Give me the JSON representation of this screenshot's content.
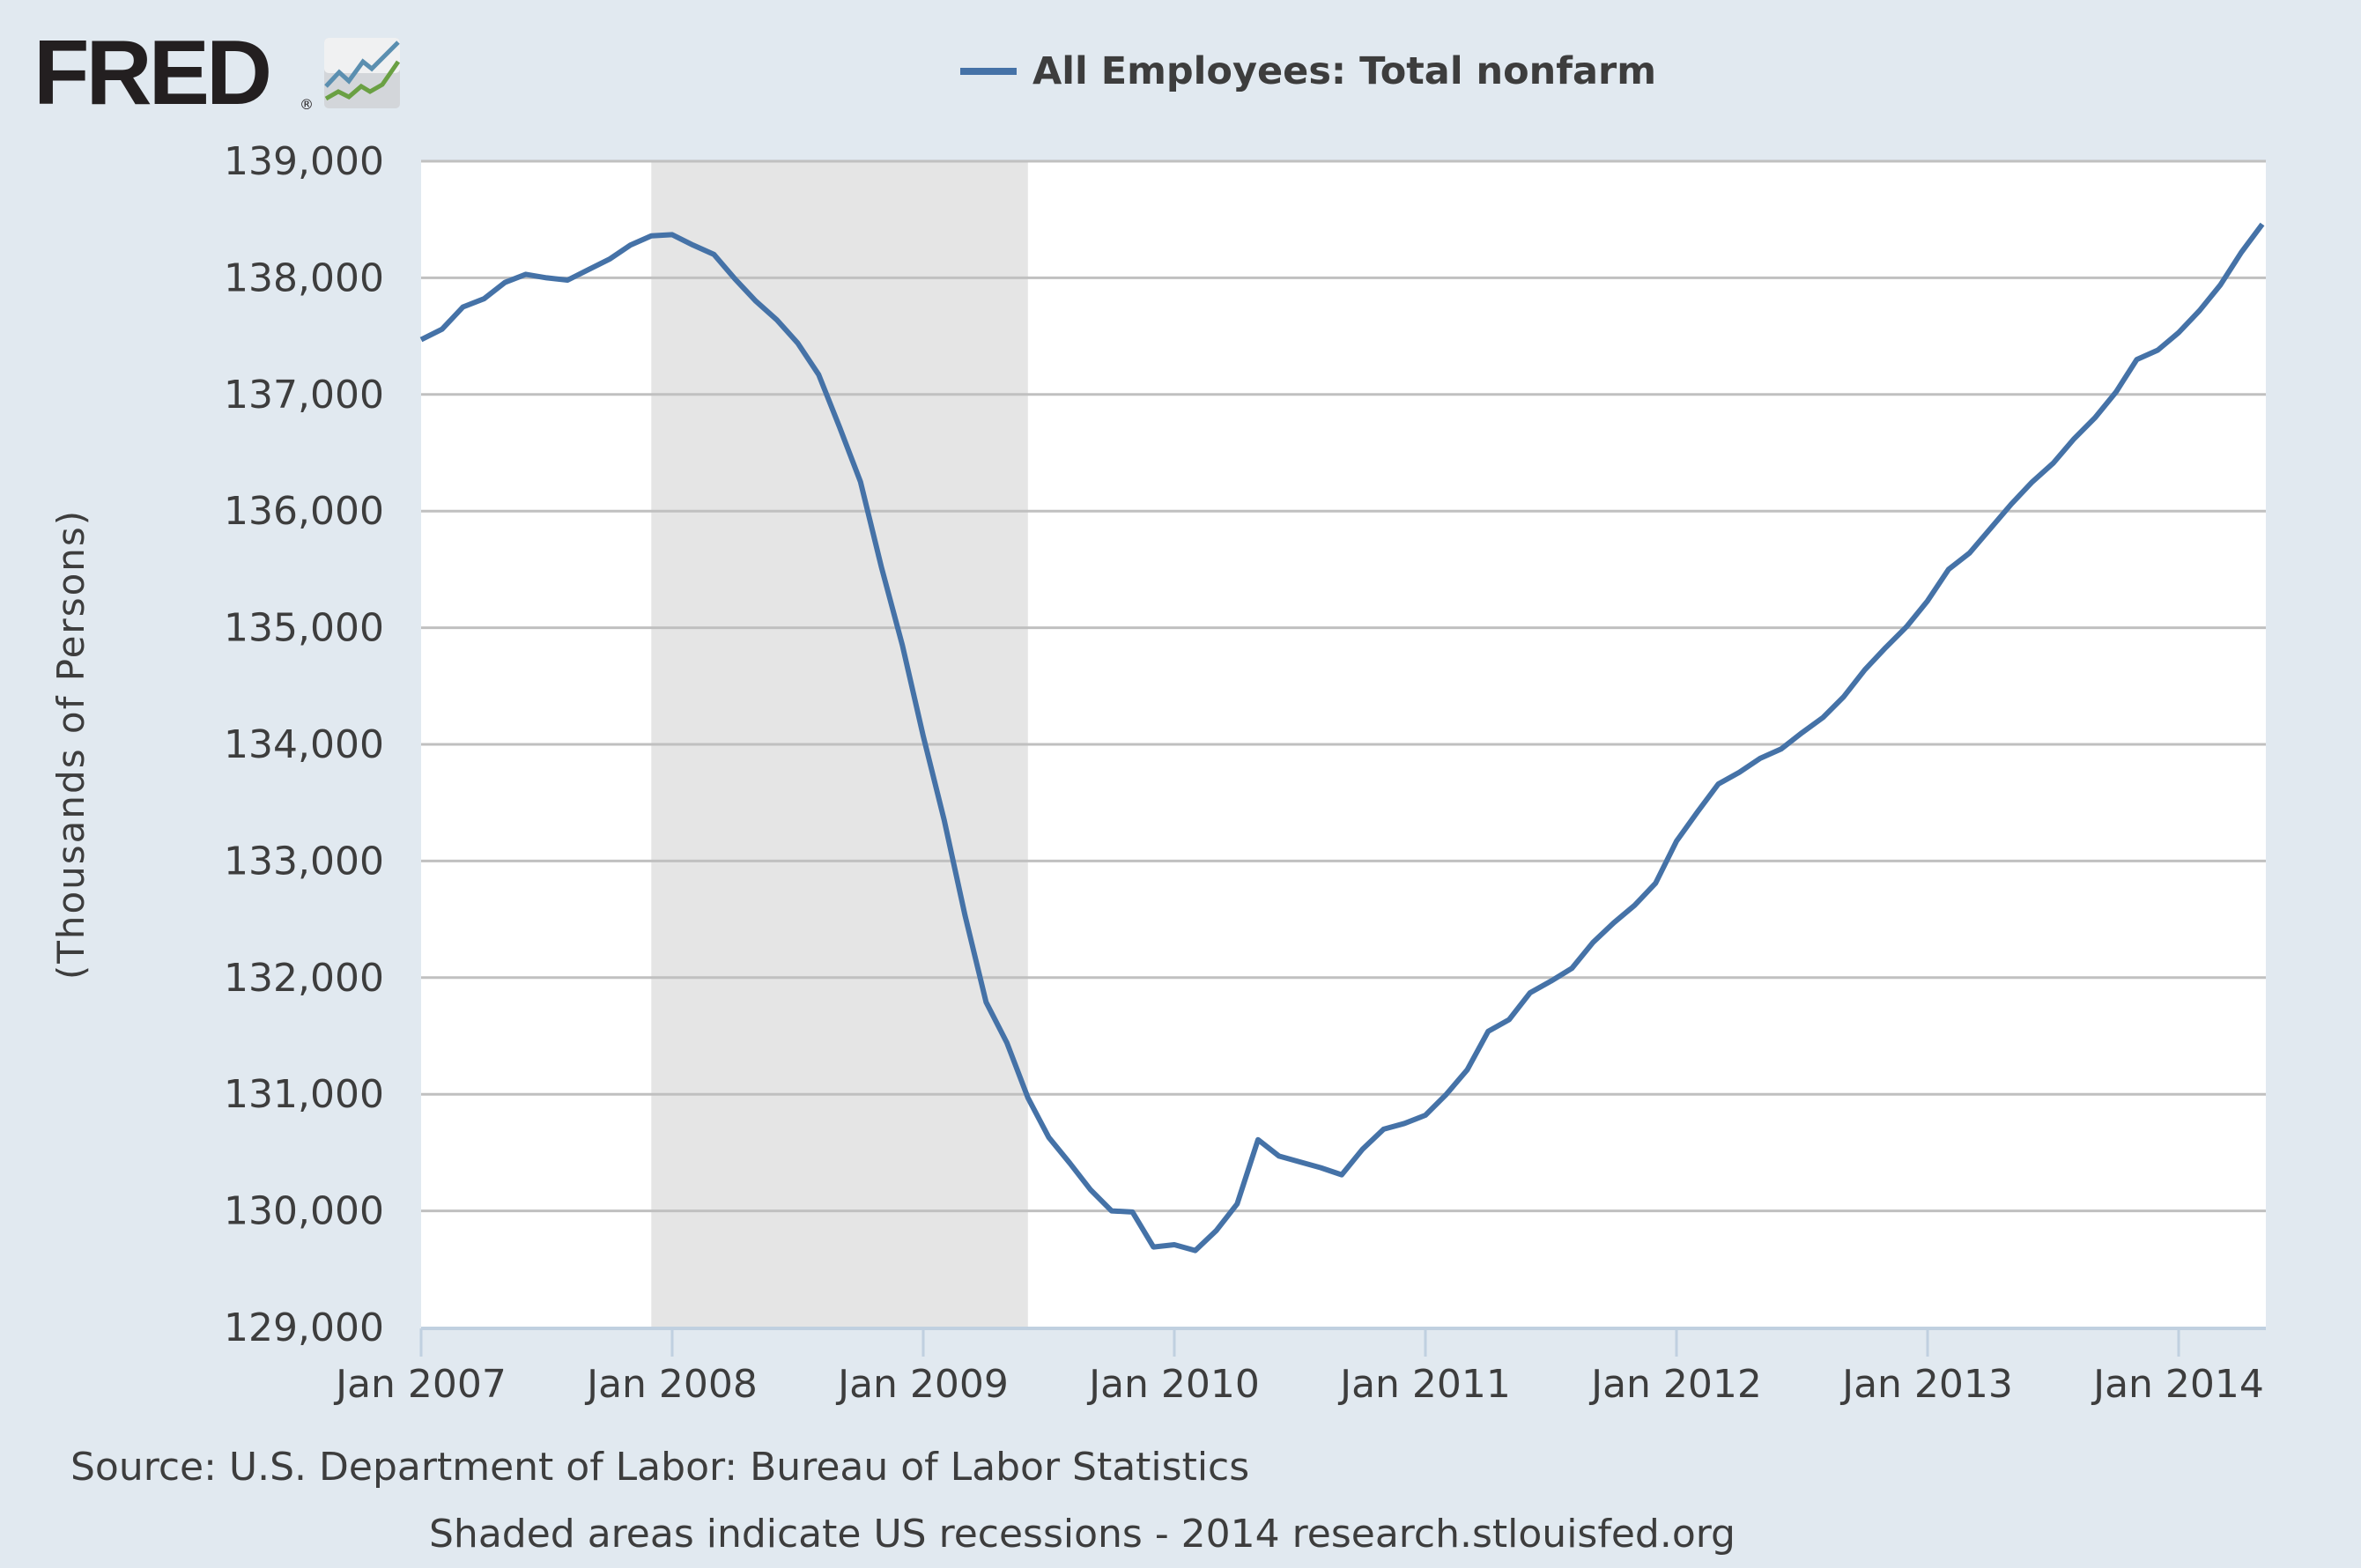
{
  "header": {
    "logo_text": "FRED",
    "logo_registered": "®",
    "logo_icon": "fred-chart-icon"
  },
  "legend": {
    "label": "All Employees: Total nonfarm",
    "swatch_color": "#4572a7"
  },
  "axes": {
    "ylabel": "(Thousands of Persons)",
    "yticks": [
      "139,000",
      "138,000",
      "137,000",
      "136,000",
      "135,000",
      "134,000",
      "133,000",
      "132,000",
      "131,000",
      "130,000",
      "129,000"
    ],
    "xticks": [
      "Jan 2007",
      "Jan 2008",
      "Jan 2009",
      "Jan 2010",
      "Jan 2011",
      "Jan 2012",
      "Jan 2013",
      "Jan 2014"
    ]
  },
  "footer": {
    "source": "Source: U.S. Department of Labor: Bureau of Labor Statistics",
    "note": "Shaded areas indicate US recessions - 2014 research.stlouisfed.org"
  },
  "colors": {
    "background": "#e1e9f0",
    "plot_background": "#ffffff",
    "line": "#4572a7",
    "recession": "#e5e5e5",
    "grid": "#c0c0c0",
    "axis": "#c0d0e0",
    "text": "#3d3d3d"
  },
  "chart_data": {
    "type": "line",
    "title": "All Employees: Total nonfarm",
    "xlabel": "",
    "ylabel": "(Thousands of Persons)",
    "ylim": [
      129000,
      139000
    ],
    "xrange": [
      "2007-01",
      "2014-05"
    ],
    "grid": true,
    "legend_position": "top",
    "recession_shading": [
      {
        "start": "2007-12",
        "end": "2009-06"
      }
    ],
    "x": [
      "2007-01",
      "2007-02",
      "2007-03",
      "2007-04",
      "2007-05",
      "2007-06",
      "2007-07",
      "2007-08",
      "2007-09",
      "2007-10",
      "2007-11",
      "2007-12",
      "2008-01",
      "2008-02",
      "2008-03",
      "2008-04",
      "2008-05",
      "2008-06",
      "2008-07",
      "2008-08",
      "2008-09",
      "2008-10",
      "2008-11",
      "2008-12",
      "2009-01",
      "2009-02",
      "2009-03",
      "2009-04",
      "2009-05",
      "2009-06",
      "2009-07",
      "2009-08",
      "2009-09",
      "2009-10",
      "2009-11",
      "2009-12",
      "2010-01",
      "2010-02",
      "2010-03",
      "2010-04",
      "2010-05",
      "2010-06",
      "2010-07",
      "2010-08",
      "2010-09",
      "2010-10",
      "2010-11",
      "2010-12",
      "2011-01",
      "2011-02",
      "2011-03",
      "2011-04",
      "2011-05",
      "2011-06",
      "2011-07",
      "2011-08",
      "2011-09",
      "2011-10",
      "2011-11",
      "2011-12",
      "2012-01",
      "2012-02",
      "2012-03",
      "2012-04",
      "2012-05",
      "2012-06",
      "2012-07",
      "2012-08",
      "2012-09",
      "2012-10",
      "2012-11",
      "2012-12",
      "2013-01",
      "2013-02",
      "2013-03",
      "2013-04",
      "2013-05",
      "2013-06",
      "2013-07",
      "2013-08",
      "2013-09",
      "2013-10",
      "2013-11",
      "2013-12",
      "2014-01",
      "2014-02",
      "2014-03",
      "2014-04",
      "2014-05"
    ],
    "series": [
      {
        "name": "All Employees: Total nonfarm",
        "color": "#4572a7",
        "values": [
          137470,
          137560,
          137750,
          137820,
          137960,
          138030,
          138000,
          137980,
          138070,
          138160,
          138280,
          138360,
          138370,
          138280,
          138200,
          137990,
          137800,
          137640,
          137440,
          137170,
          136720,
          136250,
          135520,
          134850,
          134070,
          133350,
          132530,
          131790,
          131440,
          130970,
          130630,
          130410,
          130180,
          130000,
          129990,
          129690,
          129710,
          129660,
          129830,
          130060,
          130610,
          130470,
          130420,
          130370,
          130310,
          130530,
          130700,
          130750,
          130820,
          131000,
          131210,
          131540,
          131640,
          131870,
          131970,
          132080,
          132300,
          132470,
          132620,
          132810,
          133170,
          133420,
          133660,
          133760,
          133880,
          133960,
          134100,
          134230,
          134410,
          134640,
          134830,
          135010,
          135230,
          135500,
          135640,
          135850,
          136060,
          136250,
          136410,
          136620,
          136800,
          137020,
          137300,
          137380,
          137530,
          137720,
          137940,
          138220,
          138460
        ]
      }
    ]
  }
}
